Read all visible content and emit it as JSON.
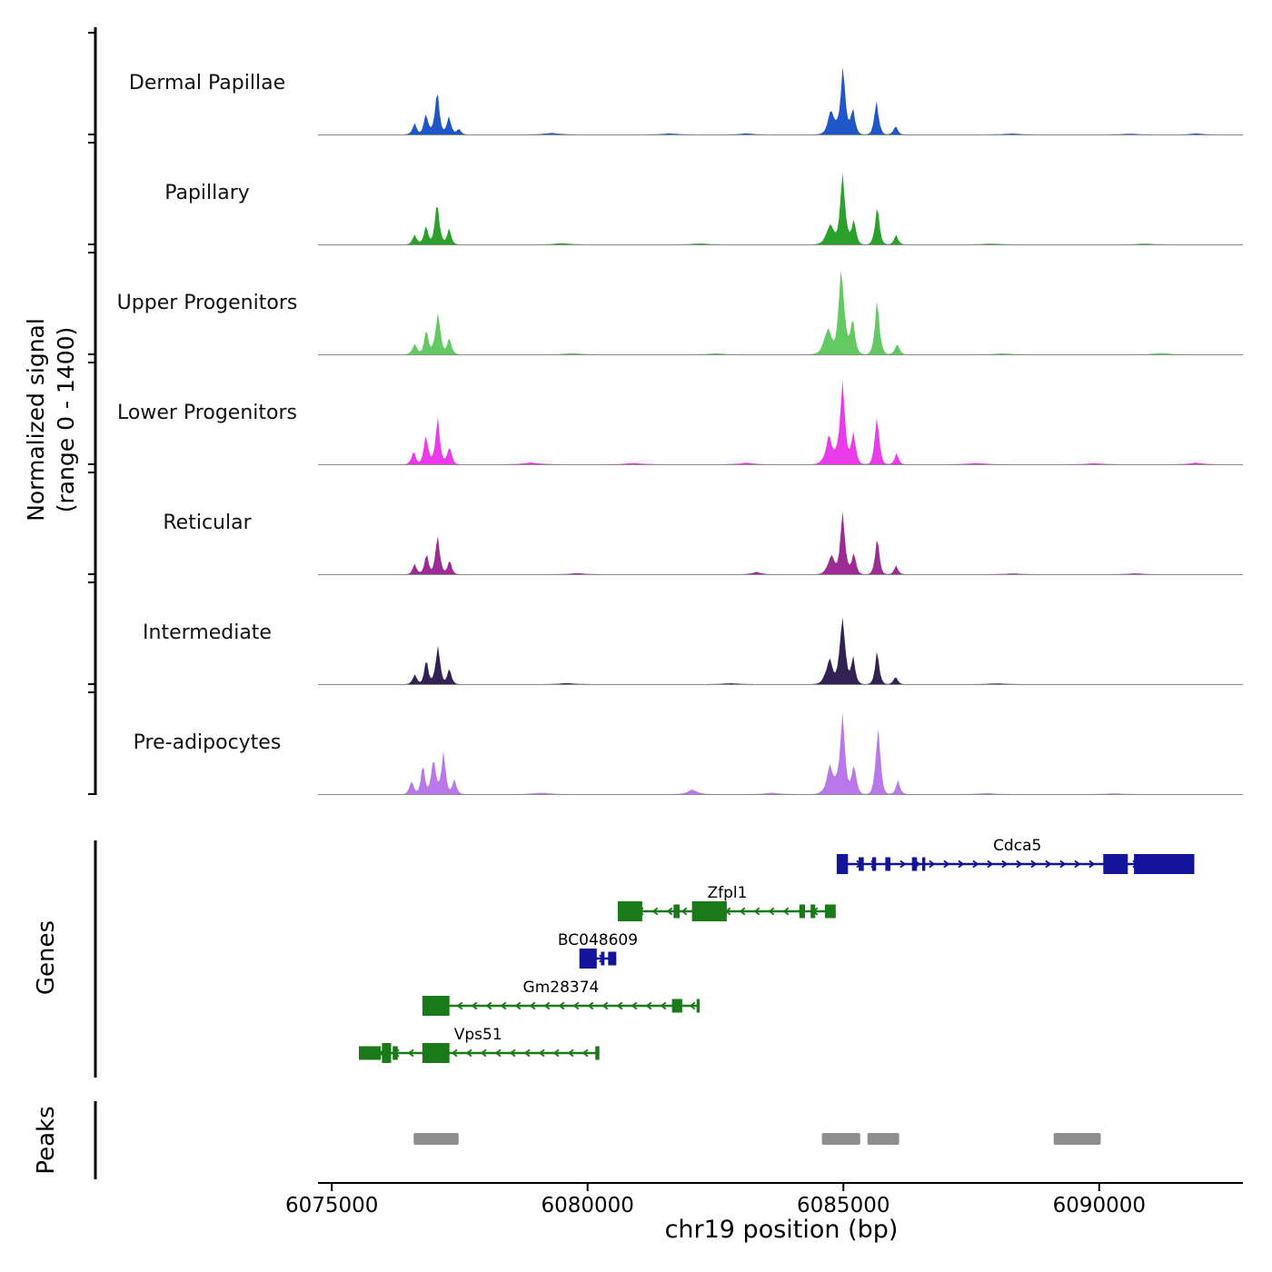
{
  "figure": {
    "y_axis_label": "Normalized signal",
    "y_axis_sublabel": "(range 0 - 1400)",
    "genes_section_label": "Genes",
    "peaks_section_label": "Peaks",
    "x_axis_label": "chr19 position (bp)"
  },
  "chart_data": {
    "type": "area",
    "title": "Genome browser signal tracks, chr19",
    "x_domain_bp": [
      6074730,
      6092810
    ],
    "x_ticks": [
      6075000,
      6080000,
      6085000,
      6090000
    ],
    "signal_range": [
      0,
      1400
    ],
    "baseline_color": "#8a8a8a",
    "peak_color": "#8e8e8e",
    "tracks": [
      {
        "name": "Dermal Papillae",
        "color": "#1f56c8",
        "bumps": [
          [
            6076620,
            150,
            60
          ],
          [
            6076840,
            310,
            55
          ],
          [
            6077060,
            630,
            62
          ],
          [
            6077290,
            260,
            55
          ],
          [
            6077480,
            90,
            55
          ],
          [
            6084760,
            340,
            85
          ],
          [
            6084990,
            960,
            68
          ],
          [
            6085190,
            340,
            60
          ],
          [
            6085650,
            470,
            58
          ],
          [
            6086020,
            120,
            55
          ],
          [
            6079300,
            20,
            200
          ],
          [
            6081600,
            14,
            200
          ],
          [
            6083100,
            16,
            160
          ],
          [
            6088300,
            12,
            220
          ],
          [
            6090600,
            10,
            220
          ],
          [
            6091900,
            14,
            160
          ]
        ]
      },
      {
        "name": "Papillary",
        "color": "#2ba02b",
        "bumps": [
          [
            6076620,
            130,
            60
          ],
          [
            6076840,
            290,
            55
          ],
          [
            6077060,
            570,
            62
          ],
          [
            6077290,
            240,
            55
          ],
          [
            6084740,
            310,
            95
          ],
          [
            6084990,
            980,
            68
          ],
          [
            6085200,
            360,
            60
          ],
          [
            6085660,
            530,
            58
          ],
          [
            6086030,
            130,
            55
          ],
          [
            6079500,
            16,
            200
          ],
          [
            6082200,
            13,
            200
          ],
          [
            6087900,
            11,
            220
          ],
          [
            6090900,
            10,
            220
          ]
        ]
      },
      {
        "name": "Upper Progenitors",
        "color": "#63c963",
        "bumps": [
          [
            6076620,
            160,
            60
          ],
          [
            6076850,
            340,
            58
          ],
          [
            6077070,
            610,
            66
          ],
          [
            6077300,
            240,
            58
          ],
          [
            6084700,
            360,
            105
          ],
          [
            6084960,
            1230,
            72
          ],
          [
            6085180,
            520,
            65
          ],
          [
            6085660,
            790,
            62
          ],
          [
            6086050,
            160,
            58
          ],
          [
            6079700,
            18,
            200
          ],
          [
            6082500,
            15,
            200
          ],
          [
            6088100,
            13,
            220
          ],
          [
            6091200,
            18,
            200
          ]
        ]
      },
      {
        "name": "Lower Progenitors",
        "color": "#ea3aea",
        "bumps": [
          [
            6076600,
            180,
            58
          ],
          [
            6076840,
            430,
            58
          ],
          [
            6077070,
            660,
            62
          ],
          [
            6077300,
            250,
            58
          ],
          [
            6084720,
            390,
            95
          ],
          [
            6084980,
            1200,
            70
          ],
          [
            6085200,
            430,
            62
          ],
          [
            6085660,
            710,
            58
          ],
          [
            6086040,
            150,
            55
          ],
          [
            6078900,
            24,
            220
          ],
          [
            6080900,
            18,
            220
          ],
          [
            6083100,
            22,
            180
          ],
          [
            6087600,
            16,
            240
          ],
          [
            6089900,
            14,
            220
          ],
          [
            6091900,
            22,
            180
          ]
        ]
      },
      {
        "name": "Reticular",
        "color": "#9c2b94",
        "bumps": [
          [
            6076620,
            140,
            55
          ],
          [
            6076850,
            310,
            55
          ],
          [
            6077070,
            530,
            60
          ],
          [
            6077300,
            210,
            55
          ],
          [
            6084760,
            290,
            85
          ],
          [
            6084990,
            860,
            64
          ],
          [
            6085200,
            310,
            58
          ],
          [
            6085660,
            510,
            55
          ],
          [
            6086030,
            120,
            52
          ],
          [
            6079800,
            14,
            200
          ],
          [
            6083300,
            30,
            120
          ],
          [
            6088300,
            10,
            220
          ],
          [
            6090700,
            12,
            200
          ]
        ]
      },
      {
        "name": "Intermediate",
        "color": "#322153",
        "bumps": [
          [
            6076620,
            150,
            55
          ],
          [
            6076850,
            340,
            55
          ],
          [
            6077070,
            570,
            60
          ],
          [
            6077300,
            230,
            55
          ],
          [
            6084730,
            350,
            95
          ],
          [
            6084980,
            950,
            70
          ],
          [
            6085190,
            390,
            60
          ],
          [
            6085660,
            490,
            55
          ],
          [
            6086020,
            120,
            52
          ],
          [
            6079600,
            14,
            200
          ],
          [
            6082800,
            12,
            200
          ],
          [
            6088000,
            10,
            220
          ]
        ]
      },
      {
        "name": "Pre-adipocytes",
        "color": "#b878ea",
        "bumps": [
          [
            6076560,
            190,
            55
          ],
          [
            6076780,
            430,
            55
          ],
          [
            6076990,
            530,
            58
          ],
          [
            6077180,
            620,
            58
          ],
          [
            6077400,
            210,
            55
          ],
          [
            6084740,
            390,
            95
          ],
          [
            6084980,
            1160,
            70
          ],
          [
            6085210,
            420,
            60
          ],
          [
            6085680,
            1010,
            60
          ],
          [
            6086070,
            190,
            55
          ],
          [
            6082050,
            60,
            130
          ],
          [
            6079100,
            20,
            200
          ],
          [
            6083600,
            18,
            180
          ],
          [
            6087800,
            12,
            220
          ],
          [
            6090300,
            10,
            220
          ]
        ]
      }
    ],
    "genes": [
      {
        "name": "Cdca5",
        "color": "#13139b",
        "strand": "+",
        "start": 6084870,
        "end": 6091860,
        "label_bp": 6088400,
        "exons": [
          [
            6084870,
            6085090,
            2
          ],
          [
            6085300,
            6085400,
            1
          ],
          [
            6085560,
            6085640,
            1
          ],
          [
            6085820,
            6085920,
            1
          ],
          [
            6086340,
            6086440,
            1
          ],
          [
            6086540,
            6086600,
            1
          ],
          [
            6090080,
            6090560,
            2
          ],
          [
            6090680,
            6091860,
            2
          ]
        ]
      },
      {
        "name": "Zfpl1",
        "color": "#1a7a1a",
        "strand": "-",
        "start": 6080590,
        "end": 6084850,
        "label_bp": 6082730,
        "exons": [
          [
            6080590,
            6081070,
            2
          ],
          [
            6081680,
            6081800,
            1
          ],
          [
            6082040,
            6082720,
            2
          ],
          [
            6084140,
            6084250,
            1
          ],
          [
            6084360,
            6084450,
            1
          ],
          [
            6084640,
            6084850,
            1
          ]
        ]
      },
      {
        "name": "BC048609",
        "color": "#13139b",
        "strand": "+",
        "start": 6079840,
        "end": 6080560,
        "label_bp": 6080200,
        "exons": [
          [
            6079840,
            6080180,
            2
          ],
          [
            6080260,
            6080330,
            1
          ],
          [
            6080400,
            6080560,
            1
          ]
        ]
      },
      {
        "name": "Gm28374",
        "color": "#1a7a1a",
        "strand": "-",
        "start": 6076770,
        "end": 6082190,
        "label_bp": 6079480,
        "exons": [
          [
            6076770,
            6077300,
            2
          ],
          [
            6081650,
            6081850,
            1
          ],
          [
            6082130,
            6082190,
            1
          ]
        ]
      },
      {
        "name": "Vps51",
        "color": "#1a7a1a",
        "strand": "-",
        "start": 6075530,
        "end": 6080230,
        "label_bp": 6077860,
        "exons": [
          [
            6075530,
            6075960,
            1
          ],
          [
            6075980,
            6076160,
            2
          ],
          [
            6076190,
            6076290,
            1
          ],
          [
            6076770,
            6077300,
            2
          ],
          [
            6080150,
            6080230,
            1
          ]
        ]
      }
    ],
    "peak_regions": [
      [
        6076600,
        6077480
      ],
      [
        6084580,
        6085330
      ],
      [
        6085470,
        6086090
      ],
      [
        6089110,
        6090030
      ]
    ]
  }
}
